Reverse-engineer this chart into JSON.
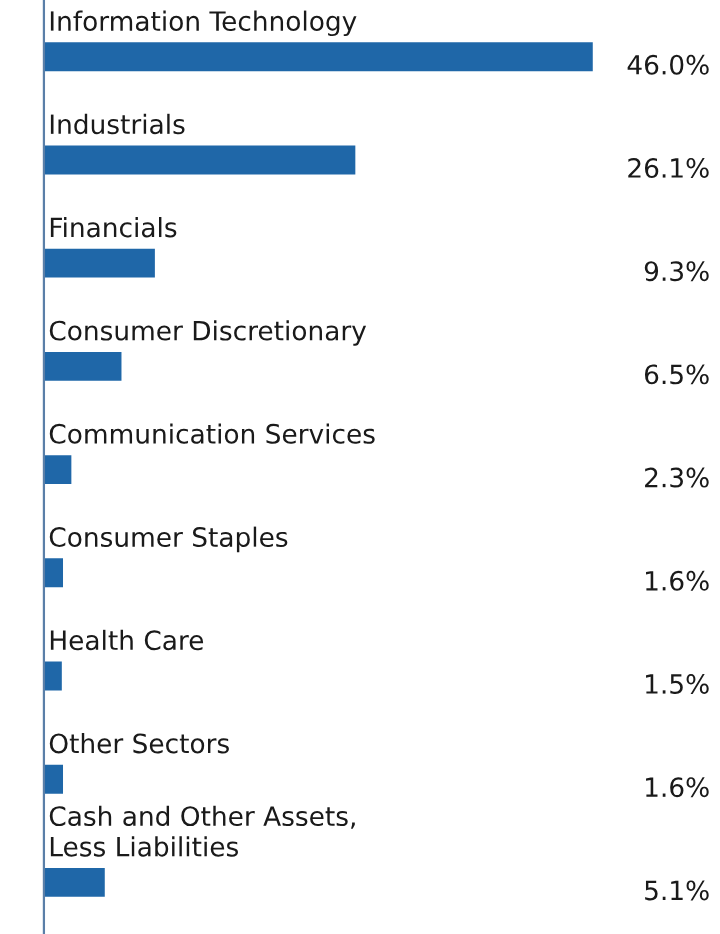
{
  "chart_data": {
    "type": "bar",
    "orientation": "horizontal",
    "categories": [
      "Information Technology",
      "Industrials",
      "Financials",
      "Consumer Discretionary",
      "Communication Services",
      "Consumer Staples",
      "Health Care",
      "Other Sectors",
      "Cash and Other Assets,\nLess Liabilities"
    ],
    "values": [
      46.0,
      26.1,
      9.3,
      6.5,
      2.3,
      1.6,
      1.5,
      1.6,
      5.1
    ],
    "value_labels": [
      "46.0%",
      "26.1%",
      "9.3%",
      "6.5%",
      "2.3%",
      "1.6%",
      "1.5%",
      "1.6%",
      "5.1%"
    ],
    "color": "#1f67a8"
  }
}
